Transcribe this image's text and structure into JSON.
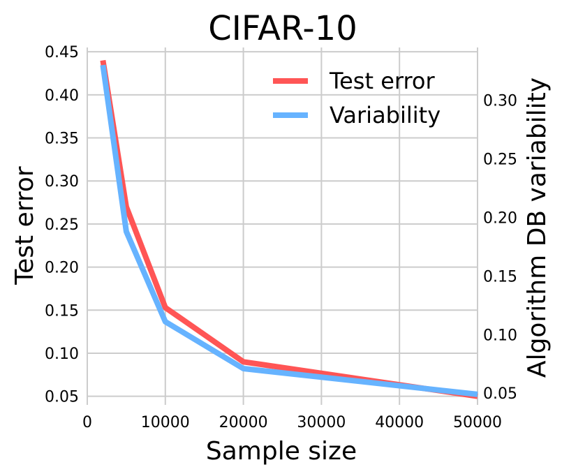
{
  "chart_data": {
    "type": "line",
    "title": "CIFAR-10",
    "xlabel": "Sample size",
    "ylabel": "Test error",
    "y2label": "Algorithm DB variability",
    "xlim": [
      0,
      50000
    ],
    "ylim": [
      0.04,
      0.455
    ],
    "y2lim": [
      0.04,
      0.345
    ],
    "x_ticks": [
      "0",
      "10000",
      "20000",
      "30000",
      "40000",
      "50000"
    ],
    "y_ticks": [
      "0.05",
      "0.10",
      "0.15",
      "0.20",
      "0.25",
      "0.30",
      "0.35",
      "0.40",
      "0.45"
    ],
    "y2_ticks": [
      "0.05",
      "0.10",
      "0.15",
      "0.20",
      "0.25",
      "0.30"
    ],
    "grid": true,
    "legend_position": "top-right",
    "series": [
      {
        "name": "Test error",
        "axis": "left",
        "color": "#ff5555",
        "x": [
          2000,
          5000,
          10000,
          20000,
          50000
        ],
        "y": [
          0.44,
          0.27,
          0.153,
          0.09,
          0.05
        ]
      },
      {
        "name": "Variability",
        "axis": "right",
        "color": "#66b3ff",
        "x": [
          2000,
          5000,
          10000,
          20000,
          50000
        ],
        "y": [
          0.33,
          0.188,
          0.111,
          0.071,
          0.049
        ]
      }
    ]
  }
}
